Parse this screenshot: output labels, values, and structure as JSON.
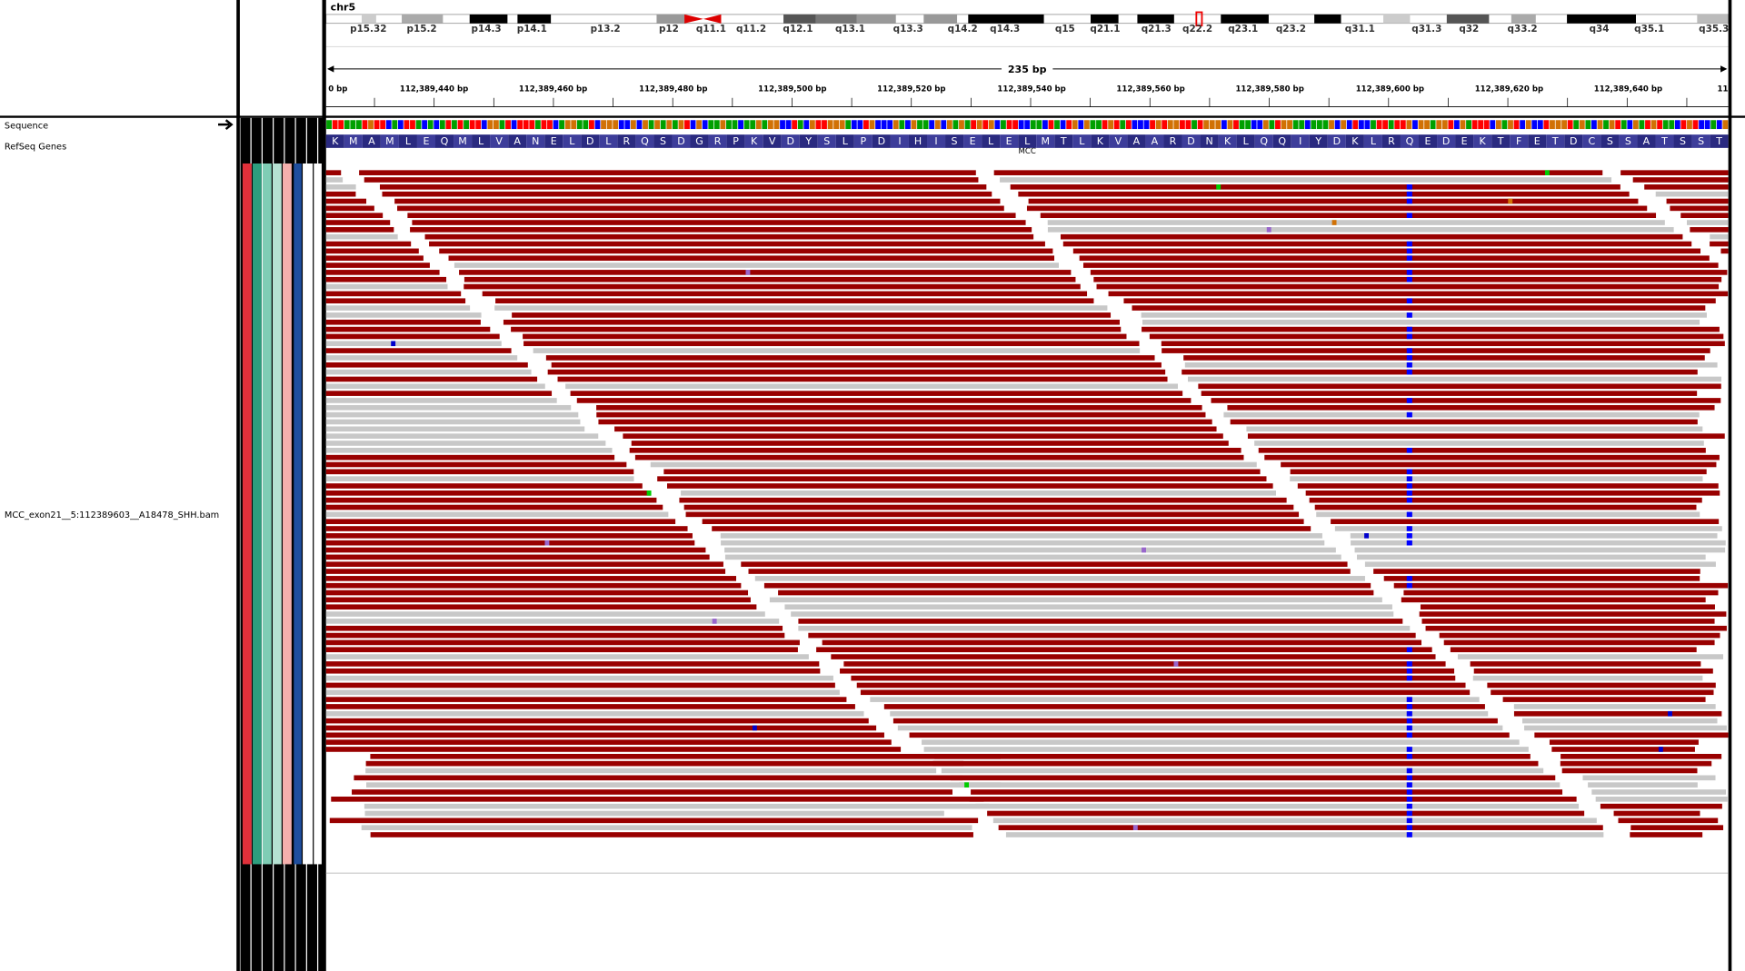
{
  "header": {
    "chromosome": "chr5",
    "cytobands": [
      "p15.32",
      "p15.2",
      "p14.3",
      "p14.1",
      "p13.2",
      "p12",
      "q11.1",
      "q11.2",
      "q12.1",
      "q13.1",
      "q13.3",
      "q14.2",
      "q14.3",
      "q15",
      "q21.1",
      "q21.3",
      "q22.2",
      "q23.1",
      "q23.2",
      "q31.1",
      "q31.3",
      "q32",
      "q33.2",
      "q34",
      "q35.1",
      "q35.3"
    ],
    "span": "235 bp",
    "ruler_ticks": [
      "0 bp",
      "112,389,440 bp",
      "112,389,460 bp",
      "112,389,480 bp",
      "112,389,500 bp",
      "112,389,520 bp",
      "112,389,540 bp",
      "112,389,560 bp",
      "112,389,580 bp",
      "112,389,600 bp",
      "112,389,620 bp",
      "112,389,640 bp",
      "11"
    ]
  },
  "tracks": {
    "sequence": "Sequence",
    "refseq": "RefSeq Genes",
    "amino_acids": [
      "K",
      "M",
      "A",
      "M",
      "L",
      "E",
      "Q",
      "M",
      "L",
      "V",
      "A",
      "N",
      "E",
      "L",
      "D",
      "L",
      "R",
      "Q",
      "S",
      "D",
      "G",
      "R",
      "P",
      "K",
      "V",
      "D",
      "Y",
      "S",
      "L",
      "P",
      "D",
      "I",
      "H",
      "I",
      "S",
      "E",
      "L",
      "E",
      "L",
      "M",
      "T",
      "L",
      "K",
      "V",
      "A",
      "A",
      "R",
      "D",
      "N",
      "K",
      "L",
      "Q",
      "Q",
      "I",
      "Y",
      "D",
      "K",
      "L",
      "R",
      "Q",
      "E",
      "D",
      "E",
      "K",
      "T",
      "F",
      "E",
      "T",
      "D",
      "C",
      "S",
      "S",
      "A",
      "T",
      "S",
      "S",
      "T"
    ],
    "gene": "MCC",
    "bam": "MCC_exon21__5:112389603__A18478_SHH.bam"
  }
}
